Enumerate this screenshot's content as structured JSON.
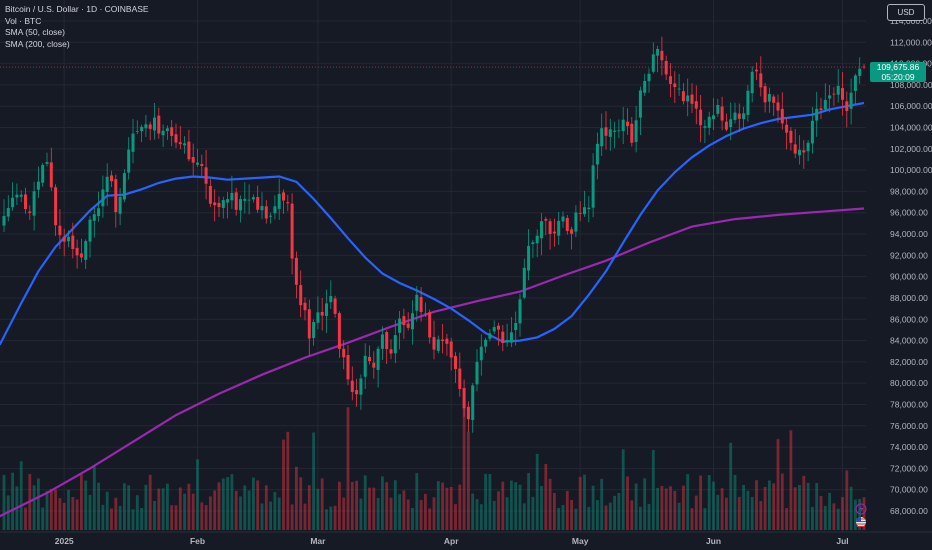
{
  "legend": {
    "symbol_line": "Bitcoin / U.S. Dollar · 1D · COINBASE",
    "volume_line": "Vol · BTC",
    "sma50_line": "SMA (50, close)",
    "sma200_line": "SMA (200, close)"
  },
  "currency": "USD",
  "last_price": {
    "value": "109,675.86",
    "countdown": "05:20:09"
  },
  "colors": {
    "background": "#161a25",
    "up": "#089981",
    "down": "#f23645",
    "sma50": "#2962ff",
    "sma200": "#9c27b0",
    "grid": "#232733",
    "axis_text": "#b2b5be"
  },
  "chart_data": {
    "type": "candlestick",
    "title": "Bitcoin / U.S. Dollar · 1D · COINBASE",
    "interval": "1D",
    "y_axis": {
      "side": "right",
      "ylim": [
        66500,
        115500
      ],
      "ticks": [
        "68,000.00",
        "70,000.00",
        "72,000.00",
        "74,000.00",
        "76,000.00",
        "78,000.00",
        "80,000.00",
        "82,000.00",
        "84,000.00",
        "86,000.00",
        "88,000.00",
        "90,000.00",
        "92,000.00",
        "94,000.00",
        "96,000.00",
        "98,000.00",
        "100,000.00",
        "102,000.00",
        "104,000.00",
        "106,000.00",
        "108,000.00",
        "110,000.00",
        "112,000.00",
        "114,000.00"
      ]
    },
    "x_axis": {
      "ticks": [
        {
          "label": "2025",
          "day": 14
        },
        {
          "label": "Feb",
          "day": 45
        },
        {
          "label": "Mar",
          "day": 73
        },
        {
          "label": "Apr",
          "day": 104
        },
        {
          "label": "May",
          "day": 134
        },
        {
          "label": "Jun",
          "day": 165
        },
        {
          "label": "Jul",
          "day": 195
        }
      ]
    },
    "grid": true,
    "last_close": 109675.86,
    "close_keypoints": [
      [
        0,
        95800
      ],
      [
        3,
        97500
      ],
      [
        6,
        96000
      ],
      [
        8,
        99500
      ],
      [
        10,
        101500
      ],
      [
        12,
        95000
      ],
      [
        15,
        93200
      ],
      [
        18,
        92500
      ],
      [
        20,
        95500
      ],
      [
        22,
        97000
      ],
      [
        24,
        100000
      ],
      [
        26,
        96500
      ],
      [
        28,
        99800
      ],
      [
        30,
        103800
      ],
      [
        33,
        105000
      ],
      [
        36,
        104000
      ],
      [
        39,
        103800
      ],
      [
        42,
        102500
      ],
      [
        44,
        101000
      ],
      [
        46,
        100200
      ],
      [
        48,
        97000
      ],
      [
        50,
        96500
      ],
      [
        53,
        97200
      ],
      [
        56,
        96800
      ],
      [
        59,
        96700
      ],
      [
        62,
        96000
      ],
      [
        64,
        97800
      ],
      [
        66,
        96800
      ],
      [
        67,
        91500
      ],
      [
        69,
        88000
      ],
      [
        71,
        84500
      ],
      [
        73,
        86200
      ],
      [
        74,
        85800
      ],
      [
        76,
        88500
      ],
      [
        77,
        86500
      ],
      [
        78,
        83000
      ],
      [
        80,
        80800
      ],
      [
        82,
        78800
      ],
      [
        84,
        82800
      ],
      [
        86,
        81800
      ],
      [
        88,
        84200
      ],
      [
        90,
        83500
      ],
      [
        92,
        85500
      ],
      [
        94,
        84700
      ],
      [
        96,
        87500
      ],
      [
        98,
        86000
      ],
      [
        100,
        82500
      ],
      [
        102,
        84300
      ],
      [
        104,
        83200
      ],
      [
        106,
        79200
      ],
      [
        108,
        76500
      ],
      [
        110,
        82600
      ],
      [
        112,
        84000
      ],
      [
        114,
        84800
      ],
      [
        116,
        84300
      ],
      [
        118,
        85100
      ],
      [
        120,
        87500
      ],
      [
        122,
        93500
      ],
      [
        124,
        94300
      ],
      [
        126,
        94800
      ],
      [
        128,
        94100
      ],
      [
        130,
        95800
      ],
      [
        132,
        94300
      ],
      [
        134,
        96500
      ],
      [
        136,
        97000
      ],
      [
        138,
        102500
      ],
      [
        140,
        104000
      ],
      [
        142,
        103800
      ],
      [
        144,
        104500
      ],
      [
        146,
        103000
      ],
      [
        148,
        106800
      ],
      [
        150,
        109200
      ],
      [
        152,
        111000
      ],
      [
        154,
        109500
      ],
      [
        156,
        108000
      ],
      [
        158,
        107200
      ],
      [
        160,
        105500
      ],
      [
        162,
        104500
      ],
      [
        164,
        104300
      ],
      [
        166,
        105800
      ],
      [
        168,
        104300
      ],
      [
        170,
        105600
      ],
      [
        172,
        105500
      ],
      [
        174,
        109800
      ],
      [
        176,
        107500
      ],
      [
        178,
        106800
      ],
      [
        180,
        104800
      ],
      [
        182,
        103900
      ],
      [
        184,
        102200
      ],
      [
        186,
        101200
      ],
      [
        188,
        105400
      ],
      [
        190,
        106100
      ],
      [
        192,
        107000
      ],
      [
        194,
        107900
      ],
      [
        196,
        105800
      ],
      [
        198,
        108900
      ],
      [
        200,
        109675.86
      ]
    ],
    "volume_axis": {
      "max": 33000
    }
  }
}
